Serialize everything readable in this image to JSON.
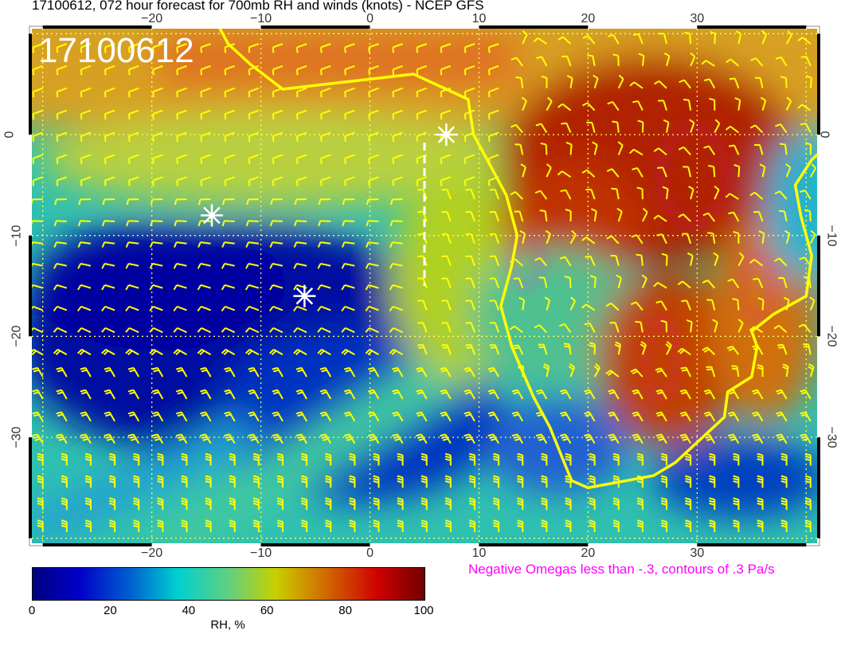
{
  "title": "17100612, 072 hour forecast for 700mb RH and winds (knots) - NCEP GFS",
  "stamp": "17100612",
  "map": {
    "lon_range": [
      -31,
      41
    ],
    "lat_range": [
      -40.5,
      10.5
    ],
    "lon_ticks": [
      "−20",
      "−10",
      "0",
      "10",
      "20",
      "30"
    ],
    "lat_ticks": [
      "0",
      "−10",
      "−20",
      "−30"
    ],
    "grid": "dotted, every 10 degrees",
    "field": "700mb relative humidity",
    "overlay": "wind barbs (knots), yellow",
    "coastline_color": "#ffff00",
    "omega_contour_color": "#ff00ff",
    "markers": [
      {
        "type": "asterisk",
        "lon": 7,
        "lat": 0
      },
      {
        "type": "asterisk",
        "lon": -14.5,
        "lat": -8
      },
      {
        "type": "asterisk",
        "lon": -6,
        "lat": -16
      }
    ]
  },
  "legend": "Negative Omegas less than -.3, contours of .3 Pa/s",
  "colorbar": {
    "labels": [
      "0",
      "20",
      "40",
      "60",
      "80",
      "100"
    ],
    "unit": "RH, %",
    "colors": [
      "#000080",
      "#0000c8",
      "#00d0d0",
      "#c8d000",
      "#d00000",
      "#700000"
    ]
  }
}
